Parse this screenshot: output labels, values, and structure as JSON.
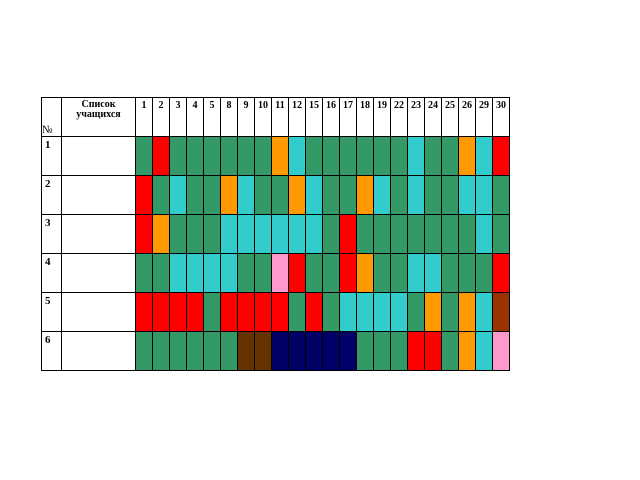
{
  "table": {
    "number_header": "№",
    "list_header": "Список учащихся",
    "days": [
      "1",
      "2",
      "3",
      "4",
      "5",
      "8",
      "9",
      "10",
      "11",
      "12",
      "15",
      "16",
      "17",
      "18",
      "19",
      "22",
      "23",
      "24",
      "25",
      "26",
      "29",
      "30"
    ],
    "rows": [
      {
        "num": "1",
        "name": "",
        "cells": [
          "g",
          "r",
          "g",
          "g",
          "g",
          "g",
          "g",
          "g",
          "o",
          "c",
          "g",
          "g",
          "g",
          "g",
          "g",
          "g",
          "c",
          "g",
          "g",
          "o",
          "c",
          "r"
        ]
      },
      {
        "num": "2",
        "name": "",
        "cells": [
          "r",
          "g",
          "c",
          "g",
          "g",
          "o",
          "c",
          "g",
          "g",
          "o",
          "c",
          "g",
          "g",
          "o",
          "c",
          "g",
          "c",
          "g",
          "g",
          "c",
          "c",
          "g"
        ]
      },
      {
        "num": "3",
        "name": "",
        "cells": [
          "r",
          "o",
          "g",
          "g",
          "g",
          "c",
          "c",
          "c",
          "c",
          "c",
          "c",
          "g",
          "r",
          "g",
          "g",
          "g",
          "g",
          "g",
          "g",
          "g",
          "c",
          "g"
        ]
      },
      {
        "num": "4",
        "name": "",
        "cells": [
          "g",
          "g",
          "c",
          "c",
          "c",
          "c",
          "g",
          "g",
          "p",
          "r",
          "g",
          "g",
          "r",
          "o",
          "g",
          "g",
          "c",
          "c",
          "g",
          "g",
          "g",
          "r"
        ]
      },
      {
        "num": "5",
        "name": "",
        "cells": [
          "r",
          "r",
          "r",
          "r",
          "g",
          "r",
          "r",
          "r",
          "r",
          "g",
          "r",
          "g",
          "c",
          "c",
          "c",
          "c",
          "g",
          "o",
          "g",
          "o",
          "c",
          "m"
        ]
      },
      {
        "num": "6",
        "name": "",
        "cells": [
          "g",
          "g",
          "g",
          "g",
          "g",
          "g",
          "b",
          "b",
          "n",
          "n",
          "n",
          "n",
          "n",
          "g",
          "g",
          "g",
          "r",
          "r",
          "g",
          "o",
          "c",
          "p"
        ]
      }
    ]
  },
  "colors": {
    "green": "#339966",
    "red": "#ff0000",
    "cyan": "#33cccc",
    "orange": "#ff9900",
    "pink": "#ff99cc",
    "brown": "#663300",
    "navy": "#000066",
    "rust": "#993300"
  }
}
